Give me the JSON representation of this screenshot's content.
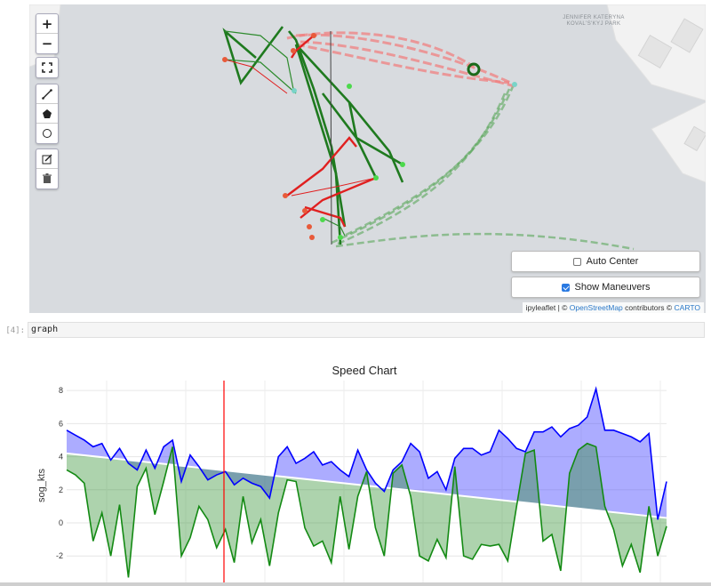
{
  "map": {
    "controls": {
      "zoom_in": "+",
      "zoom_out": "−",
      "fullscreen_icon": "fullscreen-icon",
      "draw_polyline_icon": "polyline-icon",
      "draw_polygon_icon": "polygon-icon",
      "draw_circle_icon": "circle-icon",
      "edit_icon": "edit-icon",
      "delete_icon": "trash-icon"
    },
    "park_label": "JENNIFER KATERYNA KOVAL'S'KYJ PARK",
    "auto_center": {
      "label": "Auto Center",
      "checked": false
    },
    "show_maneuvers": {
      "label": "Show Maneuvers",
      "checked": true
    },
    "attribution": {
      "ipyleaflet": "ipyleaflet",
      "sep": " | © ",
      "osm": "OpenStreetMap",
      "contrib": " contributors © ",
      "carto": "CARTO"
    },
    "colors": {
      "water": "#d8dbdf",
      "land": "#f2f2f2",
      "track_green": "#1f7a1f",
      "track_red": "#e02020"
    }
  },
  "cell": {
    "prompt": "[4]:",
    "code": "graph"
  },
  "chart_data": {
    "type": "area",
    "title": "Speed Chart",
    "ylabel": "sog_kts",
    "xlabel": "",
    "ylim": [
      -3.6,
      8.6
    ],
    "yticks": [
      -2,
      0,
      2,
      4,
      6,
      8
    ],
    "grid": true,
    "series": [
      {
        "color": "#0000ff",
        "values": [
          5.6,
          5.3,
          5.0,
          4.6,
          4.8,
          3.8,
          4.5,
          3.6,
          3.2,
          4.4,
          3.3,
          4.6,
          5.0,
          2.5,
          4.1,
          3.4,
          2.6,
          2.9,
          3.1,
          2.3,
          2.7,
          2.4,
          2.2,
          1.5,
          4.0,
          4.6,
          3.6,
          3.9,
          4.3,
          3.5,
          3.7,
          3.2,
          2.8,
          4.4,
          3.2,
          2.4,
          1.9,
          3.2,
          3.7,
          4.8,
          4.3,
          2.7,
          3.1,
          2.0,
          3.9,
          4.5,
          4.5,
          4.1,
          4.3,
          5.6,
          5.1,
          4.5,
          4.3,
          5.5,
          5.5,
          5.8,
          5.2,
          5.7,
          5.9,
          6.4,
          8.1,
          5.6,
          5.6,
          5.4,
          5.2,
          4.9,
          5.4,
          0.2,
          2.5
        ]
      },
      {
        "color": "#138a13",
        "values": [
          3.2,
          2.9,
          2.4,
          -1.1,
          0.6,
          -2.0,
          1.1,
          -3.3,
          2.2,
          3.3,
          0.5,
          2.5,
          4.6,
          -2.0,
          -0.9,
          1.0,
          0.2,
          -1.5,
          -0.4,
          -2.4,
          1.6,
          -1.2,
          0.2,
          -2.6,
          0.6,
          2.6,
          2.5,
          -0.3,
          -1.4,
          -1.1,
          -2.4,
          1.6,
          -1.6,
          1.6,
          3.1,
          -0.3,
          -2.0,
          3.0,
          3.5,
          1.6,
          -2.0,
          -2.3,
          -1.0,
          -2.1,
          3.4,
          -2.0,
          -2.2,
          -1.3,
          -1.4,
          -1.3,
          -2.3,
          1.0,
          4.2,
          4.4,
          -1.1,
          -0.7,
          -2.9,
          3.0,
          4.4,
          4.8,
          4.6,
          1.0,
          -0.4,
          -2.6,
          -1.3,
          -3.0,
          1.0,
          -2.0,
          -0.2
        ]
      }
    ],
    "trend_line": {
      "y_start": 4.2,
      "y_end": 0.3
    },
    "cursor": {
      "color": "#ff0000"
    }
  }
}
